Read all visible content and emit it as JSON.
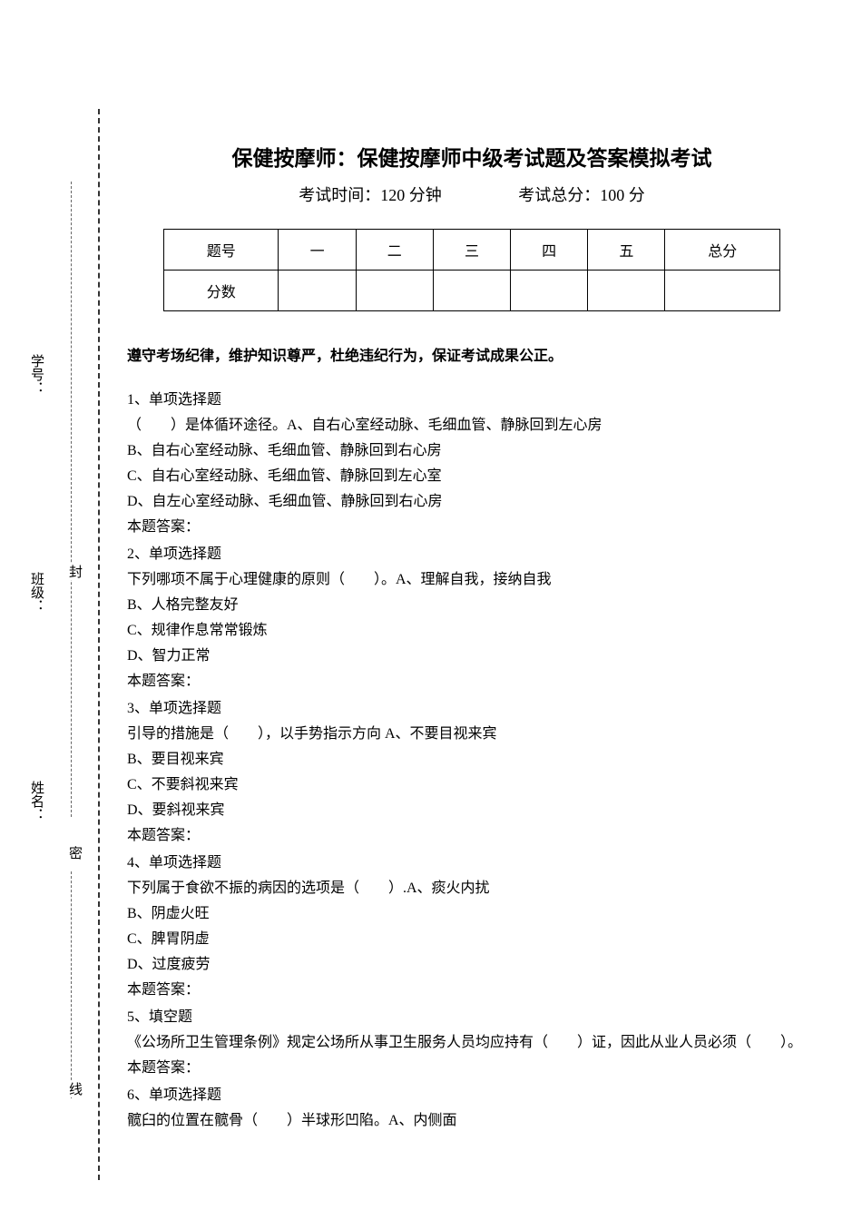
{
  "sidebar": {
    "labels": {
      "xuehao": "学号：",
      "banji": "班级：",
      "xingming": "姓名："
    },
    "seal_chars": {
      "mi": "密",
      "feng": "封",
      "xian": "线"
    }
  },
  "header": {
    "title": "保健按摩师：保健按摩师中级考试题及答案模拟考试",
    "time_label": "考试时间：120 分钟",
    "total_label": "考试总分：100 分"
  },
  "table": {
    "row_header": "题号",
    "cols": [
      "一",
      "二",
      "三",
      "四",
      "五",
      "总分"
    ],
    "score_header": "分数"
  },
  "instruction": "遵守考场纪律，维护知识尊严，杜绝违纪行为，保证考试成果公正。",
  "questions": [
    {
      "num": "1、单项选择题",
      "stem": "（　　）是体循环途径。A、自右心室经动脉、毛细血管、静脉回到左心房",
      "options": [
        "B、自右心室经动脉、毛细血管、静脉回到右心房",
        "C、自右心室经动脉、毛细血管、静脉回到左心室",
        "D、自左心室经动脉、毛细血管、静脉回到右心房"
      ],
      "answer": "本题答案："
    },
    {
      "num": "2、单项选择题",
      "stem": "下列哪项不属于心理健康的原则（　　）。A、理解自我，接纳自我",
      "options": [
        "B、人格完整友好",
        "C、规律作息常常锻炼",
        "D、智力正常"
      ],
      "answer": "本题答案："
    },
    {
      "num": "3、单项选择题",
      "stem": "引导的措施是（　　），以手势指示方向 A、不要目视来宾",
      "options": [
        "B、要目视来宾",
        "C、不要斜视来宾",
        "D、要斜视来宾"
      ],
      "answer": "本题答案："
    },
    {
      "num": "4、单项选择题",
      "stem": "下列属于食欲不振的病因的选项是（　　）.A、痰火内扰",
      "options": [
        "B、阴虚火旺",
        "C、脾胃阴虚",
        "D、过度疲劳"
      ],
      "answer": "本题答案："
    },
    {
      "num": "5、填空题",
      "stem": "《公场所卫生管理条例》规定公场所从事卫生服务人员均应持有（　　）证，因此从业人员必须（　　）。",
      "options": [],
      "answer": "本题答案："
    },
    {
      "num": "6、单项选择题",
      "stem": "髋臼的位置在髋骨（　　）半球形凹陷。A、内侧面",
      "options": [],
      "answer": ""
    }
  ]
}
